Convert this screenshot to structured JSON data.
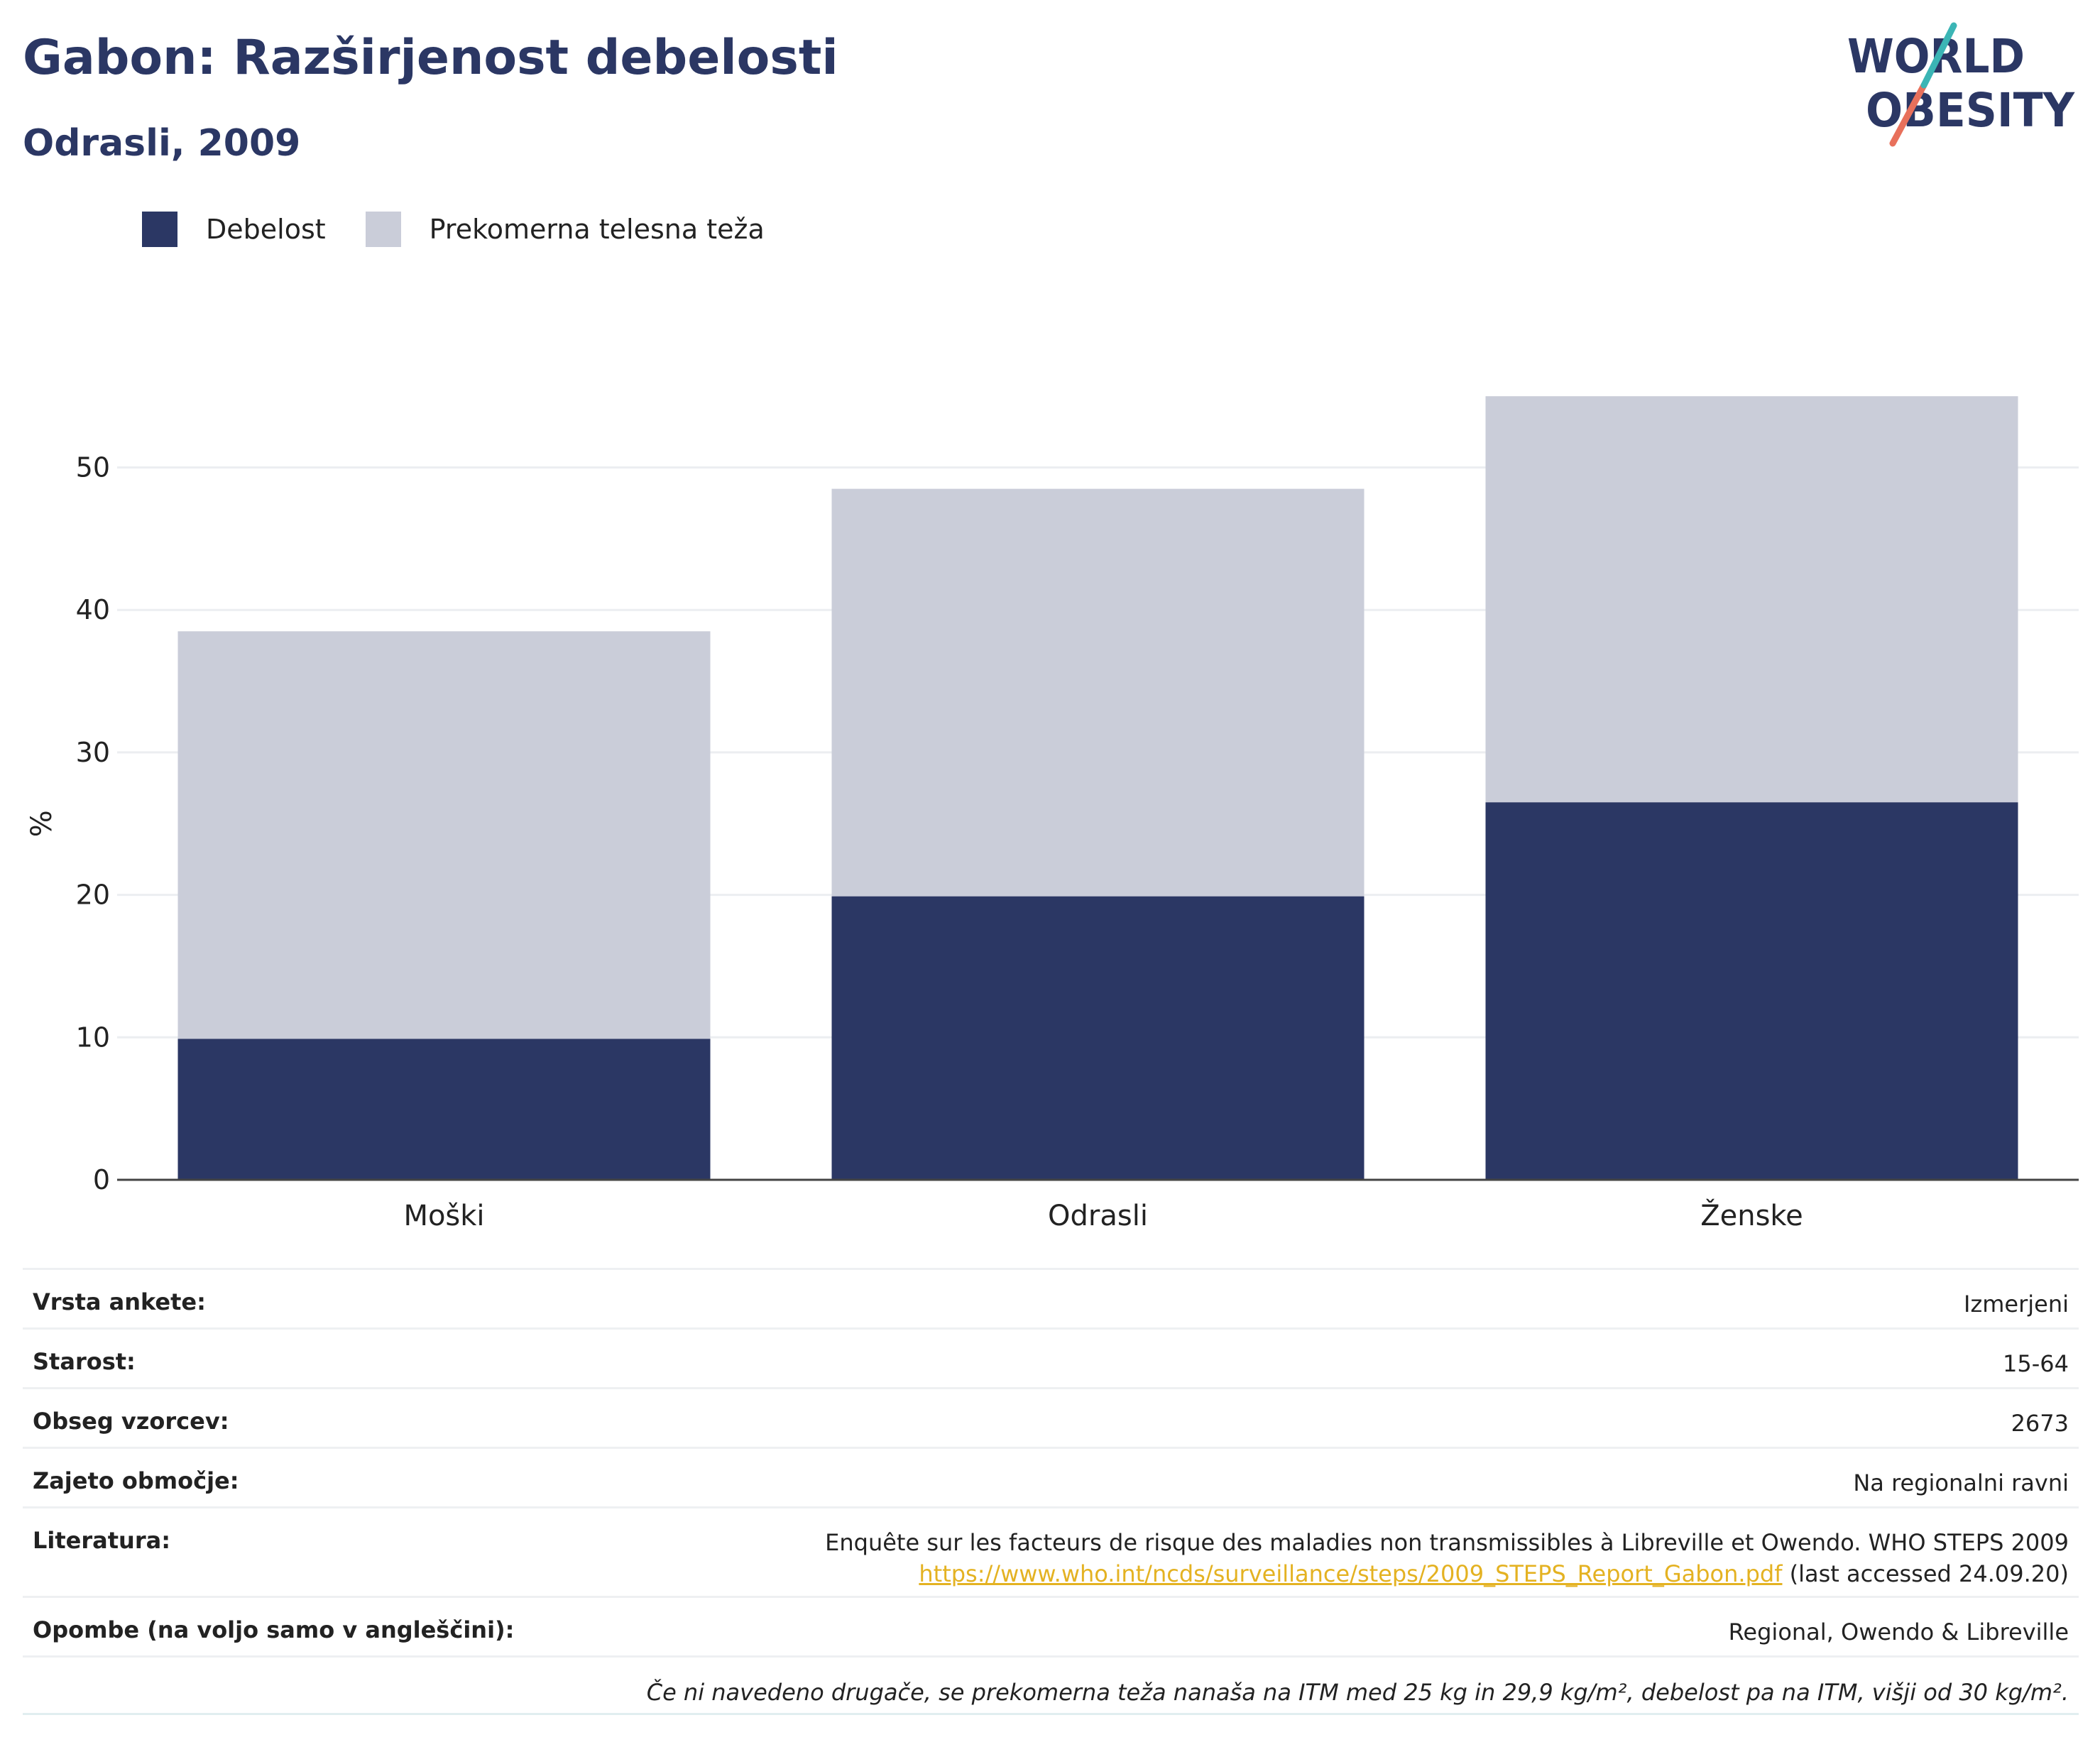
{
  "header": {
    "title": "Gabon: Razširjenost debelosti",
    "subtitle": "Odrasli, 2009"
  },
  "logo": {
    "line1": "WORLD",
    "line2": "OBESITY"
  },
  "legend": {
    "items": [
      {
        "label": "Debelost",
        "color": "#2b3764"
      },
      {
        "label": "Prekomerna telesna teža",
        "color": "#cacdd9"
      }
    ]
  },
  "chart_data": {
    "type": "bar",
    "stacked": true,
    "categories": [
      "Moški",
      "Odrasli",
      "Ženske"
    ],
    "series": [
      {
        "name": "Debelost",
        "values": [
          9.9,
          19.9,
          26.5
        ],
        "color": "#2b3764"
      },
      {
        "name": "Prekomerna telesna teža",
        "values": [
          28.6,
          28.6,
          28.5
        ],
        "color": "#cacdd9"
      }
    ],
    "ylabel": "%",
    "xlabel": "",
    "ylim": [
      0,
      60
    ],
    "yticks": [
      0,
      10,
      20,
      30,
      40,
      50
    ],
    "grid": true,
    "legend_position": "top-left"
  },
  "info": {
    "rows": [
      {
        "key": "Vrsta ankete:",
        "value": "Izmerjeni"
      },
      {
        "key": "Starost:",
        "value": "15-64"
      },
      {
        "key": "Obseg vzorcev:",
        "value": "2673"
      },
      {
        "key": "Zajeto območje:",
        "value": "Na regionalni ravni"
      }
    ],
    "literature": {
      "key": "Literatura:",
      "text": "Enquête sur les facteurs de risque des maladies non transmissibles à Libreville et Owendo. WHO STEPS 2009",
      "link": "https://www.who.int/ncds/surveillance/steps/2009_STEPS_Report_Gabon.pdf",
      "suffix": " (last accessed 24.09.20)"
    },
    "notes": {
      "key": "Opombe (na voljo samo v angleščini):",
      "value": "Regional, Owendo & Libreville"
    },
    "footnote": "Če ni navedeno drugače, se prekomerna teža nanaša na ITM med 25 kg in 29,9 kg/m², debelost pa na ITM, višji od 30 kg/m²."
  }
}
